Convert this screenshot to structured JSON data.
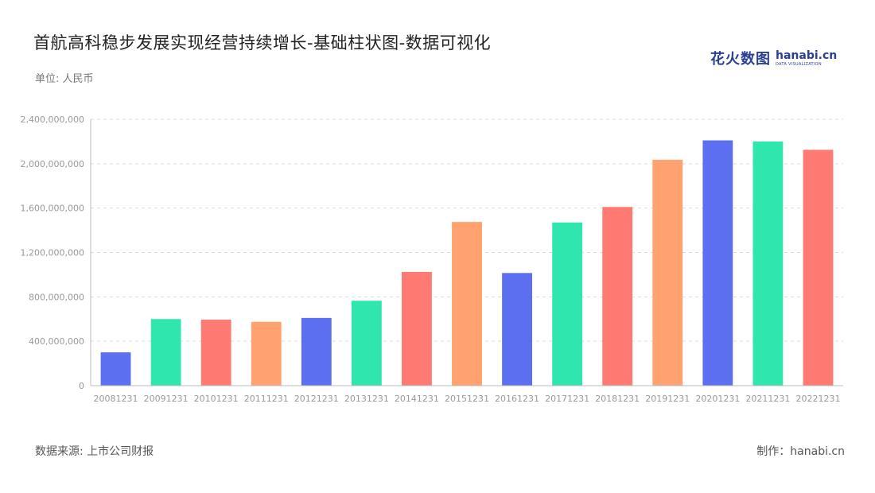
{
  "header": {
    "title": "首航高科稳步发展实现经营持续增长-基础柱状图-数据可视化",
    "unit": "单位: 人民币"
  },
  "logo": {
    "cn": "花火数图",
    "en": "hanabi.cn",
    "sub": "DATA VISUALIZATION"
  },
  "footer": {
    "source": "数据来源: 上市公司财报",
    "credit": "制作：hanabi.cn"
  },
  "chart_data": {
    "type": "bar",
    "categories": [
      "20081231",
      "20091231",
      "20101231",
      "20111231",
      "20121231",
      "20131231",
      "20141231",
      "20151231",
      "20161231",
      "20171231",
      "20181231",
      "20191231",
      "20201231",
      "20211231",
      "20221231"
    ],
    "values": [
      300000000,
      600000000,
      595000000,
      575000000,
      610000000,
      765000000,
      1025000000,
      1475000000,
      1015000000,
      1470000000,
      1610000000,
      2035000000,
      2210000000,
      2200000000,
      2125000000
    ],
    "colors": [
      "#5b6ff0",
      "#2ee6ae",
      "#ff7a72",
      "#ffa26f",
      "#5b6ff0",
      "#2ee6ae",
      "#ff7a72",
      "#ffa26f",
      "#5b6ff0",
      "#2ee6ae",
      "#ff7a72",
      "#ffa26f",
      "#5b6ff0",
      "#2ee6ae",
      "#ff7a72"
    ],
    "yticks": [
      "0",
      "400,000,000",
      "800,000,000",
      "1,200,000,000",
      "1,600,000,000",
      "2,000,000,000",
      "2,400,000,000"
    ],
    "ylim": [
      0,
      2400000000
    ],
    "grid": true,
    "title": "首航高科稳步发展实现经营持续增长-基础柱状图-数据可视化",
    "ylabel": "单位: 人民币"
  }
}
